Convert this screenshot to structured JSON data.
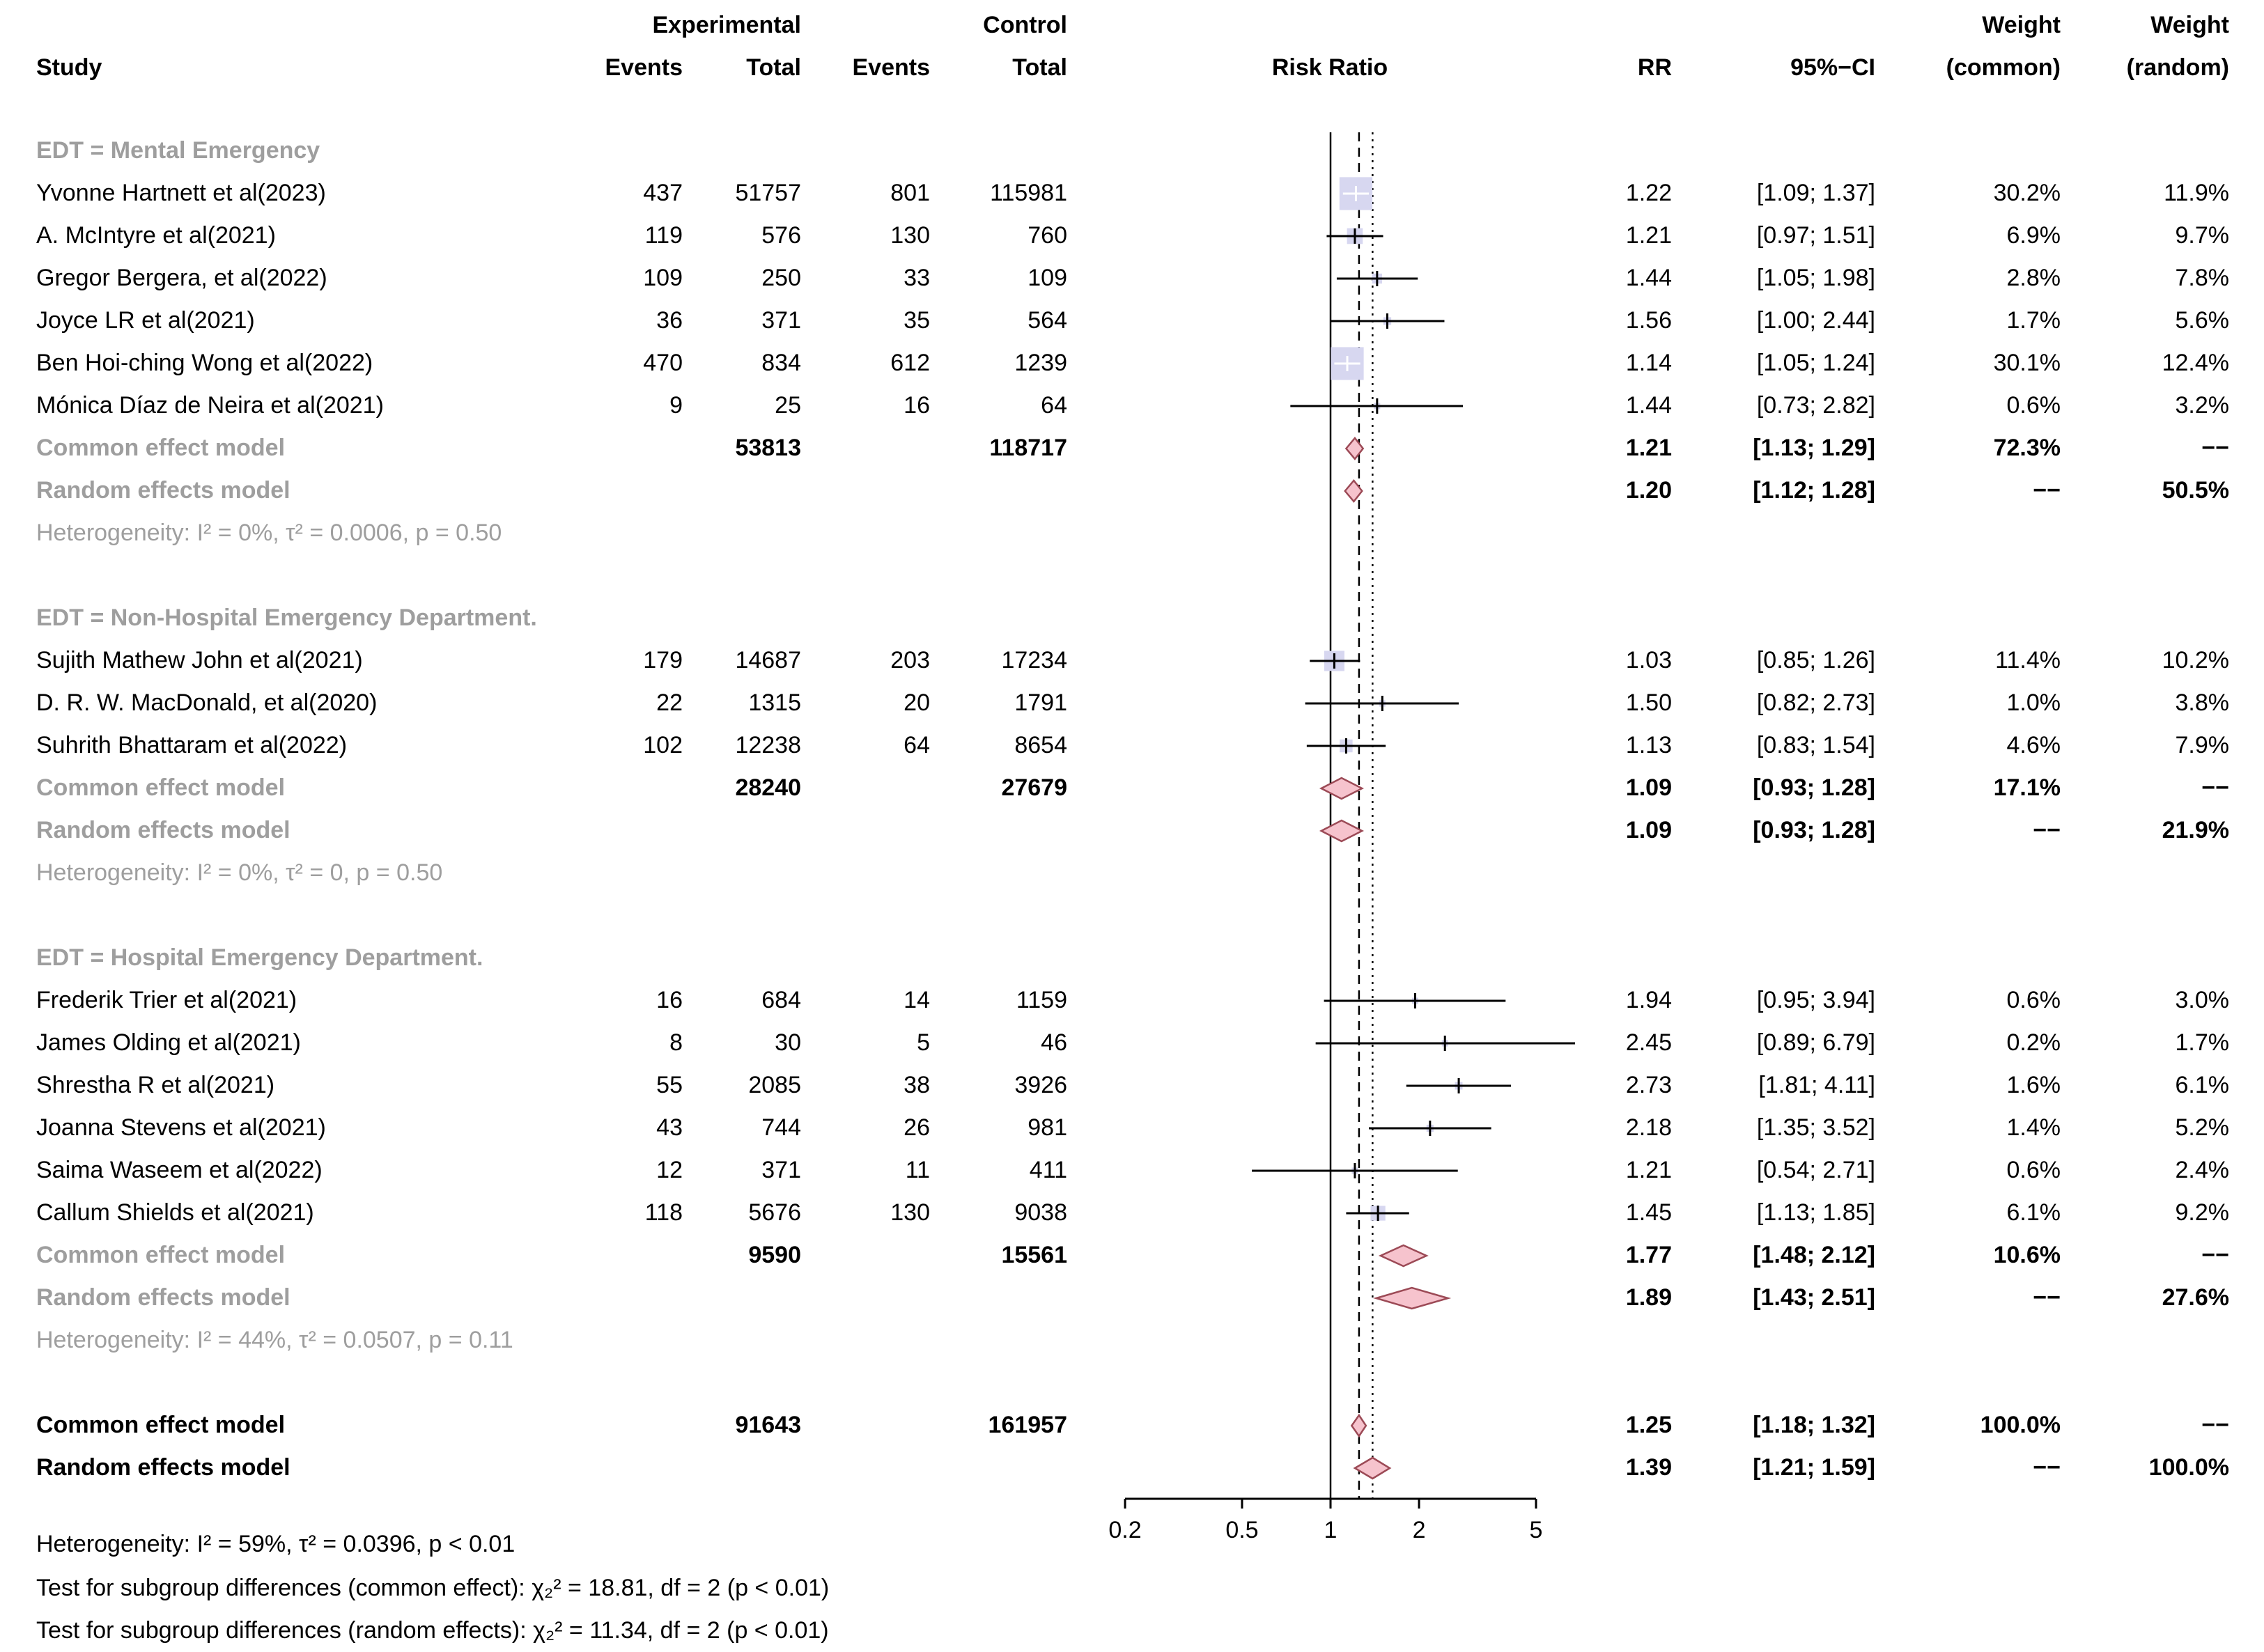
{
  "chart_data": {
    "type": "forest",
    "header": {
      "study": "Study",
      "experimental": "Experimental",
      "control": "Control",
      "events_exp": "Events",
      "total_exp": "Total",
      "events_ctrl": "Events",
      "total_ctrl": "Total",
      "risk_ratio": "Risk Ratio",
      "rr": "RR",
      "ci": "95%−CI",
      "weight_common_line1": "Weight",
      "weight_common_line2": "(common)",
      "weight_random_line1": "Weight",
      "weight_random_line2": "(random)"
    },
    "axis": {
      "scale": "log",
      "tick_labels": [
        "0.2",
        "0.5",
        "1",
        "2",
        "5"
      ],
      "tick_values": [
        0.2,
        0.5,
        1,
        2,
        5
      ],
      "ref_line": 1,
      "dashed_line": 1.25,
      "dotted_line": 1.39
    },
    "colors": {
      "square_fill": "#d7d7f0",
      "diamond_fill": "#f6c3cd",
      "diamond_stroke": "#9c4a56",
      "subdued_text": "#9e9e9e",
      "line": "#000000"
    },
    "na_label": "−−",
    "groups": [
      {
        "label": "EDT = Mental Emergency",
        "studies": [
          {
            "name": "Yvonne Hartnett et al(2023)",
            "exp_events": 437,
            "exp_total": 51757,
            "ctrl_events": 801,
            "ctrl_total": 115981,
            "rr": 1.22,
            "ci_low": 1.09,
            "ci_high": 1.37,
            "weight_common": 30.2,
            "weight_random": 11.9
          },
          {
            "name": "A. McIntyre et al(2021)",
            "exp_events": 119,
            "exp_total": 576,
            "ctrl_events": 130,
            "ctrl_total": 760,
            "rr": 1.21,
            "ci_low": 0.97,
            "ci_high": 1.51,
            "weight_common": 6.9,
            "weight_random": 9.7
          },
          {
            "name": "Gregor Bergera, et al(2022)",
            "exp_events": 109,
            "exp_total": 250,
            "ctrl_events": 33,
            "ctrl_total": 109,
            "rr": 1.44,
            "ci_low": 1.05,
            "ci_high": 1.98,
            "weight_common": 2.8,
            "weight_random": 7.8
          },
          {
            "name": "Joyce LR et al(2021)",
            "exp_events": 36,
            "exp_total": 371,
            "ctrl_events": 35,
            "ctrl_total": 564,
            "rr": 1.56,
            "ci_low": 1.0,
            "ci_high": 2.44,
            "weight_common": 1.7,
            "weight_random": 5.6
          },
          {
            "name": "Ben Hoi-ching Wong et al(2022)",
            "exp_events": 470,
            "exp_total": 834,
            "ctrl_events": 612,
            "ctrl_total": 1239,
            "rr": 1.14,
            "ci_low": 1.05,
            "ci_high": 1.24,
            "weight_common": 30.1,
            "weight_random": 12.4
          },
          {
            "name": "Mónica Díaz de Neira et al(2021)",
            "exp_events": 9,
            "exp_total": 25,
            "ctrl_events": 16,
            "ctrl_total": 64,
            "rr": 1.44,
            "ci_low": 0.73,
            "ci_high": 2.82,
            "weight_common": 0.6,
            "weight_random": 3.2
          }
        ],
        "common": {
          "label": "Common effect model",
          "exp_total": 53813,
          "ctrl_total": 118717,
          "rr": 1.21,
          "ci_low": 1.13,
          "ci_high": 1.29,
          "weight_common": 72.3,
          "weight_random": null
        },
        "random": {
          "label": "Random effects model",
          "rr": 1.2,
          "ci_low": 1.12,
          "ci_high": 1.28,
          "weight_common": null,
          "weight_random": 50.5
        },
        "heterogeneity": "Heterogeneity: I² = 0%, τ² = 0.0006, p = 0.50"
      },
      {
        "label": "EDT = Non-Hospital Emergency Department.",
        "studies": [
          {
            "name": "Sujith Mathew John et al(2021)",
            "exp_events": 179,
            "exp_total": 14687,
            "ctrl_events": 203,
            "ctrl_total": 17234,
            "rr": 1.03,
            "ci_low": 0.85,
            "ci_high": 1.26,
            "weight_common": 11.4,
            "weight_random": 10.2
          },
          {
            "name": "D. R. W. MacDonald, et al(2020)",
            "exp_events": 22,
            "exp_total": 1315,
            "ctrl_events": 20,
            "ctrl_total": 1791,
            "rr": 1.5,
            "ci_low": 0.82,
            "ci_high": 2.73,
            "weight_common": 1.0,
            "weight_random": 3.8
          },
          {
            "name": "Suhrith Bhattaram et al(2022)",
            "exp_events": 102,
            "exp_total": 12238,
            "ctrl_events": 64,
            "ctrl_total": 8654,
            "rr": 1.13,
            "ci_low": 0.83,
            "ci_high": 1.54,
            "weight_common": 4.6,
            "weight_random": 7.9
          }
        ],
        "common": {
          "label": "Common effect model",
          "exp_total": 28240,
          "ctrl_total": 27679,
          "rr": 1.09,
          "ci_low": 0.93,
          "ci_high": 1.28,
          "weight_common": 17.1,
          "weight_random": null
        },
        "random": {
          "label": "Random effects model",
          "rr": 1.09,
          "ci_low": 0.93,
          "ci_high": 1.28,
          "weight_common": null,
          "weight_random": 21.9
        },
        "heterogeneity": "Heterogeneity: I² = 0%, τ² = 0, p = 0.50"
      },
      {
        "label": "EDT = Hospital Emergency Department.",
        "studies": [
          {
            "name": "Frederik Trier et al(2021)",
            "exp_events": 16,
            "exp_total": 684,
            "ctrl_events": 14,
            "ctrl_total": 1159,
            "rr": 1.94,
            "ci_low": 0.95,
            "ci_high": 3.94,
            "weight_common": 0.6,
            "weight_random": 3.0
          },
          {
            "name": "James Olding et al(2021)",
            "exp_events": 8,
            "exp_total": 30,
            "ctrl_events": 5,
            "ctrl_total": 46,
            "rr": 2.45,
            "ci_low": 0.89,
            "ci_high": 6.79,
            "weight_common": 0.2,
            "weight_random": 1.7
          },
          {
            "name": "Shrestha R et al(2021)",
            "exp_events": 55,
            "exp_total": 2085,
            "ctrl_events": 38,
            "ctrl_total": 3926,
            "rr": 2.73,
            "ci_low": 1.81,
            "ci_high": 4.11,
            "weight_common": 1.6,
            "weight_random": 6.1
          },
          {
            "name": "Joanna Stevens et al(2021)",
            "exp_events": 43,
            "exp_total": 744,
            "ctrl_events": 26,
            "ctrl_total": 981,
            "rr": 2.18,
            "ci_low": 1.35,
            "ci_high": 3.52,
            "weight_common": 1.4,
            "weight_random": 5.2
          },
          {
            "name": "Saima Waseem et al(2022)",
            "exp_events": 12,
            "exp_total": 371,
            "ctrl_events": 11,
            "ctrl_total": 411,
            "rr": 1.21,
            "ci_low": 0.54,
            "ci_high": 2.71,
            "weight_common": 0.6,
            "weight_random": 2.4
          },
          {
            "name": "Callum Shields et al(2021)",
            "exp_events": 118,
            "exp_total": 5676,
            "ctrl_events": 130,
            "ctrl_total": 9038,
            "rr": 1.45,
            "ci_low": 1.13,
            "ci_high": 1.85,
            "weight_common": 6.1,
            "weight_random": 9.2
          }
        ],
        "common": {
          "label": "Common effect model",
          "exp_total": 9590,
          "ctrl_total": 15561,
          "rr": 1.77,
          "ci_low": 1.48,
          "ci_high": 2.12,
          "weight_common": 10.6,
          "weight_random": null
        },
        "random": {
          "label": "Random effects model",
          "rr": 1.89,
          "ci_low": 1.43,
          "ci_high": 2.51,
          "weight_common": null,
          "weight_random": 27.6
        },
        "heterogeneity": "Heterogeneity: I² = 44%, τ² = 0.0507, p = 0.11"
      }
    ],
    "overall": {
      "common": {
        "label": "Common effect model",
        "exp_total": 91643,
        "ctrl_total": 161957,
        "rr": 1.25,
        "ci_low": 1.18,
        "ci_high": 1.32,
        "weight_common": 100.0,
        "weight_random": null
      },
      "random": {
        "label": "Random effects model",
        "rr": 1.39,
        "ci_low": 1.21,
        "ci_high": 1.59,
        "weight_common": null,
        "weight_random": 100.0
      }
    },
    "footnotes": [
      "Heterogeneity: I² = 59%, τ² = 0.0396, p < 0.01",
      "Test for subgroup differences (common effect): χ₂² = 18.81, df = 2 (p < 0.01)",
      "Test for subgroup differences (random effects): χ₂² = 11.34, df = 2 (p < 0.01)"
    ]
  }
}
